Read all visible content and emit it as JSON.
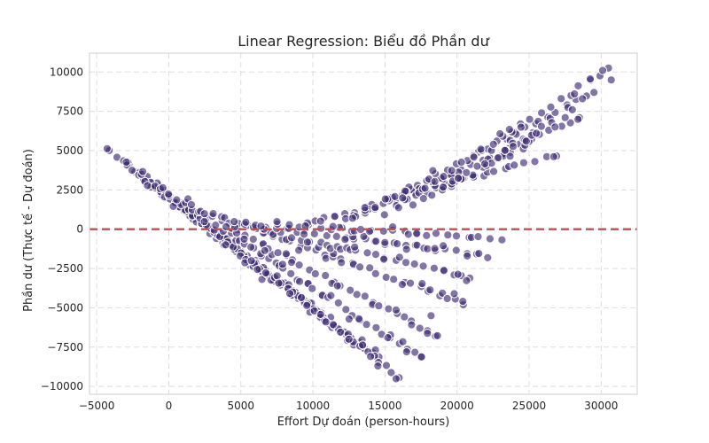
{
  "chart_data": {
    "type": "scatter",
    "title": "Linear Regression: Biểu đồ Phần dư",
    "xlabel": "Effort Dự đoán (person-hours)",
    "ylabel": "Phần dư (Thực tế - Dự đoán)",
    "xlim": [
      -5500,
      32500
    ],
    "ylim": [
      -10500,
      11200
    ],
    "xticks": [
      -5000,
      0,
      5000,
      10000,
      15000,
      20000,
      25000,
      30000
    ],
    "xtick_labels": [
      "−5000",
      "0",
      "5000",
      "10000",
      "15000",
      "20000",
      "25000",
      "30000"
    ],
    "yticks": [
      -10000,
      -7500,
      -5000,
      -2500,
      0,
      2500,
      5000,
      7500,
      10000
    ],
    "ytick_labels": [
      "−10000",
      "−7500",
      "−5000",
      "−2500",
      "0",
      "2500",
      "5000",
      "7500",
      "10000"
    ],
    "grid": true,
    "reference_line": {
      "y": 0,
      "style": "dashed",
      "color": "#c0504d"
    },
    "point_color": "#3f2d76",
    "series_description": "Residuals fall along diagonal bands (slope ≈ -1 below ~11000, fanning out upward to the right)",
    "bands": [
      {
        "x_start": -4000,
        "y_start": 4900,
        "x_end": 11500,
        "y_end": -6000,
        "n": 40
      },
      {
        "x_start": -3000,
        "y_start": 4100,
        "x_end": 12800,
        "y_end": -7200,
        "n": 38
      },
      {
        "x_start": -2000,
        "y_start": 3400,
        "x_end": 14500,
        "y_end": -8200,
        "n": 38
      },
      {
        "x_start": -1000,
        "y_start": 2800,
        "x_end": 16000,
        "y_end": -9400,
        "n": 38
      },
      {
        "x_start": 0,
        "y_start": 2200,
        "x_end": 17500,
        "y_end": -8200,
        "n": 34
      },
      {
        "x_start": 1500,
        "y_start": 1500,
        "x_end": 18500,
        "y_end": -6700,
        "n": 32
      },
      {
        "x_start": 3000,
        "y_start": 900,
        "x_end": 20500,
        "y_end": -4700,
        "n": 30
      },
      {
        "x_start": 4500,
        "y_start": 400,
        "x_end": 21000,
        "y_end": -3100,
        "n": 26
      },
      {
        "x_start": 6000,
        "y_start": 200,
        "x_end": 22000,
        "y_end": -1700,
        "n": 24
      },
      {
        "x_start": 7500,
        "y_start": 300,
        "x_end": 23000,
        "y_end": -600,
        "n": 22
      },
      {
        "x_start": 9500,
        "y_start": 300,
        "x_end": 26800,
        "y_end": 4700,
        "n": 26
      },
      {
        "x_start": 11500,
        "y_start": 300,
        "x_end": 28500,
        "y_end": 7000,
        "n": 26
      },
      {
        "x_start": 13000,
        "y_start": 800,
        "x_end": 29000,
        "y_end": 8500,
        "n": 24
      },
      {
        "x_start": 15000,
        "y_start": 1000,
        "x_end": 30500,
        "y_end": 10200,
        "n": 24
      },
      {
        "x_start": 17000,
        "y_start": 1500,
        "x_end": 24500,
        "y_end": 5200,
        "n": 12
      },
      {
        "x_start": 19500,
        "y_start": 2800,
        "x_end": 26500,
        "y_end": 6800,
        "n": 12
      }
    ],
    "extra_points": [
      {
        "x": 29500,
        "y": 8700
      },
      {
        "x": 28700,
        "y": 8300
      },
      {
        "x": 30100,
        "y": 10100
      },
      {
        "x": 30700,
        "y": 9500
      },
      {
        "x": 28000,
        "y": 7600
      },
      {
        "x": 26800,
        "y": 6500
      },
      {
        "x": 25500,
        "y": 6100
      },
      {
        "x": 24800,
        "y": 5600
      },
      {
        "x": 27500,
        "y": 7100
      },
      {
        "x": 16500,
        "y": -7800
      },
      {
        "x": 15200,
        "y": -6900
      },
      {
        "x": 14000,
        "y": -8100
      },
      {
        "x": 12500,
        "y": -7000
      },
      {
        "x": 18200,
        "y": -5500
      },
      {
        "x": 19800,
        "y": -4100
      }
    ]
  }
}
